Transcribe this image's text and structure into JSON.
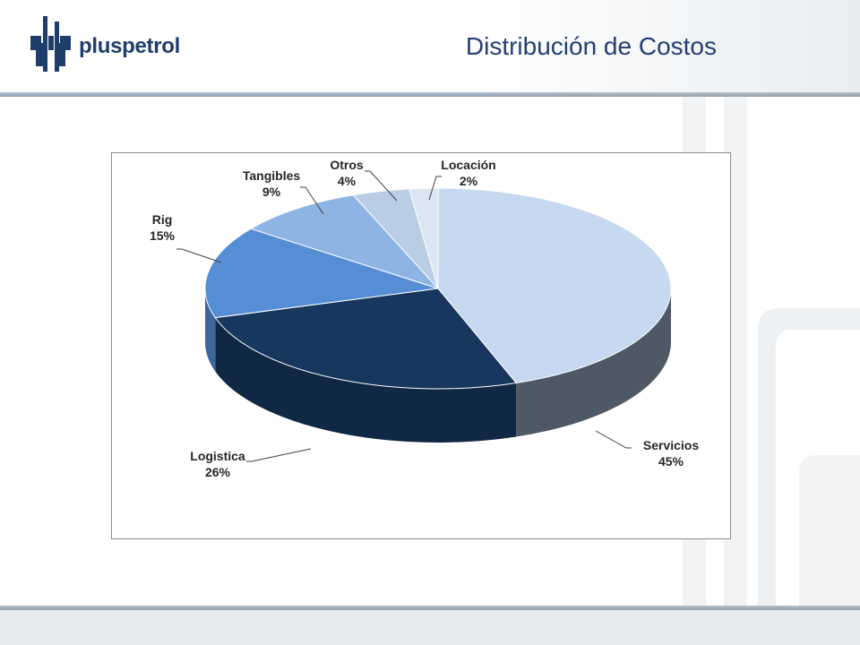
{
  "header": {
    "logo_text": "pluspetrol",
    "title": "Distribución de Costos"
  },
  "colors": {
    "brand": "#1f3d6b",
    "title": "#243f74",
    "rule": "#9aa9b5"
  },
  "chart_data": {
    "type": "pie",
    "title": "",
    "legend": "none",
    "categories": [
      "Servicios",
      "Logistica",
      "Rig",
      "Tangibles",
      "Otros",
      "Locación"
    ],
    "values": [
      45,
      26,
      15,
      9,
      4,
      2
    ],
    "labels": [
      "45%",
      "26%",
      "15%",
      "9%",
      "4%",
      "2%"
    ],
    "colors": [
      "#c6d9f1",
      "#17375e",
      "#558ed5",
      "#8eb4e3",
      "#b9cde5",
      "#dce6f2"
    ]
  }
}
